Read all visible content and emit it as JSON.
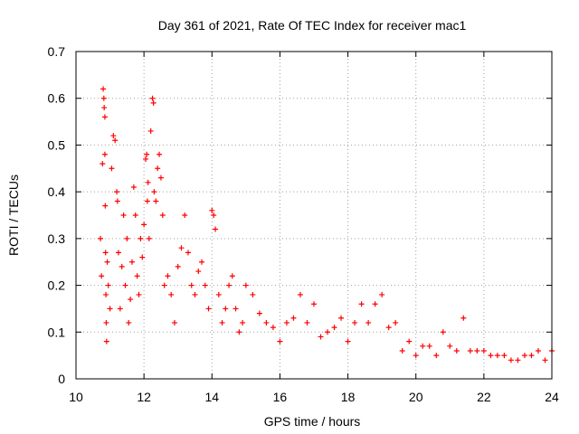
{
  "chart_data": {
    "type": "scatter",
    "title": "Day 361 of 2021, Rate Of TEC Index for receiver mac1",
    "xlabel": "GPS time / hours",
    "ylabel": "ROTI / TECUs",
    "xlim": [
      10,
      24
    ],
    "ylim": [
      0,
      0.7
    ],
    "xticks": [
      "10",
      "12",
      "14",
      "16",
      "18",
      "20",
      "22",
      "24"
    ],
    "yticks": [
      "0",
      "0.1",
      "0.2",
      "0.3",
      "0.4",
      "0.5",
      "0.6",
      "0.7"
    ],
    "grid": true,
    "marker": "+",
    "color": "#ff0000",
    "series": [
      {
        "x": [
          10.72,
          10.75,
          10.78,
          10.8,
          10.82,
          10.83,
          10.85,
          10.85,
          10.86,
          10.87,
          10.88,
          10.89,
          10.9,
          10.92,
          10.95,
          11.0,
          11.05,
          11.1,
          11.15,
          11.2,
          11.22,
          11.25,
          11.3,
          11.35,
          11.4,
          11.45,
          11.5,
          11.55,
          11.6,
          11.65,
          11.7,
          11.75,
          11.8,
          11.85,
          11.9,
          11.95,
          12.0,
          12.05,
          12.08,
          12.1,
          12.12,
          12.15,
          12.2,
          12.25,
          12.28,
          12.3,
          12.35,
          12.4,
          12.45,
          12.5,
          12.55,
          12.6,
          12.7,
          12.8,
          12.9,
          13.0,
          13.1,
          13.2,
          13.3,
          13.4,
          13.5,
          13.6,
          13.7,
          13.8,
          13.9,
          14.0,
          14.05,
          14.1,
          14.2,
          14.3,
          14.4,
          14.5,
          14.6,
          14.7,
          14.8,
          14.9,
          15.0,
          15.2,
          15.4,
          15.6,
          15.8,
          16.0,
          16.2,
          16.4,
          16.6,
          16.8,
          17.0,
          17.2,
          17.4,
          17.6,
          17.8,
          18.0,
          18.2,
          18.4,
          18.6,
          18.8,
          19.0,
          19.2,
          19.4,
          19.6,
          19.8,
          20.0,
          20.2,
          20.4,
          20.6,
          20.8,
          21.0,
          21.2,
          21.4,
          21.6,
          21.8,
          22.0,
          22.2,
          22.4,
          22.6,
          22.8,
          23.0,
          23.2,
          23.4,
          23.6,
          23.8,
          24.0
        ],
        "y": [
          0.3,
          0.22,
          0.46,
          0.62,
          0.6,
          0.58,
          0.56,
          0.48,
          0.37,
          0.27,
          0.18,
          0.12,
          0.08,
          0.25,
          0.2,
          0.15,
          0.45,
          0.52,
          0.51,
          0.4,
          0.38,
          0.27,
          0.15,
          0.24,
          0.35,
          0.2,
          0.3,
          0.12,
          0.17,
          0.25,
          0.41,
          0.35,
          0.22,
          0.18,
          0.3,
          0.26,
          0.33,
          0.47,
          0.48,
          0.38,
          0.42,
          0.3,
          0.53,
          0.6,
          0.59,
          0.4,
          0.38,
          0.45,
          0.48,
          0.43,
          0.35,
          0.2,
          0.22,
          0.18,
          0.12,
          0.24,
          0.28,
          0.35,
          0.27,
          0.2,
          0.18,
          0.23,
          0.25,
          0.2,
          0.15,
          0.36,
          0.35,
          0.32,
          0.18,
          0.12,
          0.15,
          0.2,
          0.22,
          0.15,
          0.1,
          0.12,
          0.2,
          0.18,
          0.14,
          0.12,
          0.11,
          0.08,
          0.12,
          0.13,
          0.18,
          0.12,
          0.16,
          0.09,
          0.1,
          0.11,
          0.13,
          0.08,
          0.12,
          0.16,
          0.12,
          0.16,
          0.18,
          0.11,
          0.12,
          0.06,
          0.08,
          0.05,
          0.07,
          0.07,
          0.05,
          0.1,
          0.07,
          0.06,
          0.13,
          0.06,
          0.06,
          0.06,
          0.05,
          0.05,
          0.05,
          0.04,
          0.04,
          0.05,
          0.05,
          0.06,
          0.04,
          0.06
        ]
      }
    ]
  }
}
